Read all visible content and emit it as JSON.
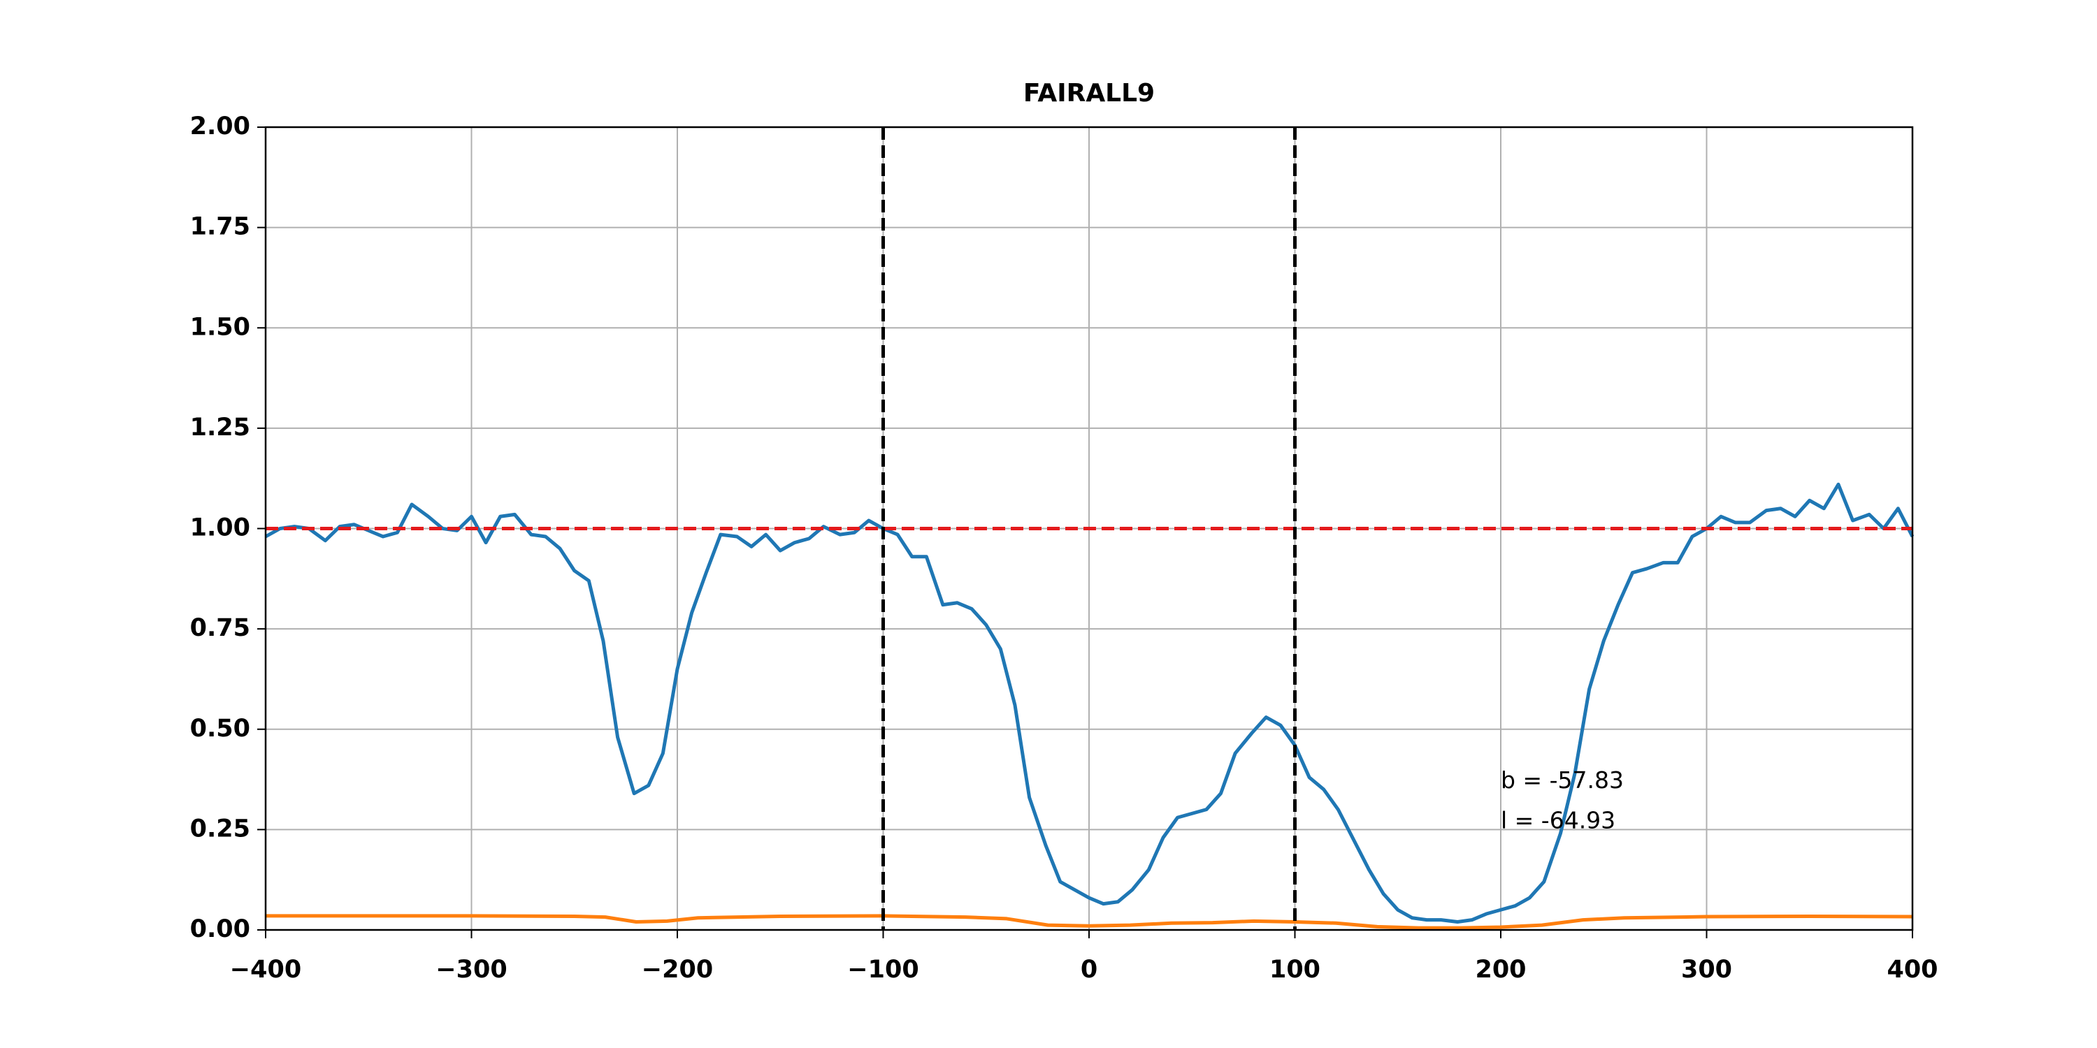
{
  "chart_data": {
    "type": "line",
    "title": "FAIRALL9",
    "xlim": [
      -400,
      400
    ],
    "ylim": [
      0,
      2
    ],
    "xticks": [
      {
        "value": -400,
        "label": "−400"
      },
      {
        "value": -300,
        "label": "−300"
      },
      {
        "value": -200,
        "label": "−200"
      },
      {
        "value": -100,
        "label": "−100"
      },
      0,
      100,
      200,
      300,
      400
    ],
    "yticks": [
      {
        "value": 0,
        "label": "0.00"
      },
      {
        "value": 0.25,
        "label": "0.25"
      },
      {
        "value": 0.5,
        "label": "0.50"
      },
      {
        "value": 0.75,
        "label": "0.75"
      },
      {
        "value": 1,
        "label": "1.00"
      },
      {
        "value": 1.25,
        "label": "1.25"
      },
      {
        "value": 1.5,
        "label": "1.50"
      },
      {
        "value": 1.75,
        "label": "1.75"
      },
      {
        "value": 2,
        "label": "2.00"
      }
    ],
    "grid": true,
    "series": [
      {
        "color": "#1f77b4",
        "x": [
          -400,
          -393,
          -386,
          -379,
          -371,
          -364,
          -357,
          -350,
          -343,
          -336,
          -329,
          -321,
          -314,
          -307,
          -300,
          -293,
          -286,
          -279,
          -271,
          -264,
          -257,
          -250,
          -243,
          -236,
          -229,
          -221,
          -214,
          -207,
          -200,
          -193,
          -186,
          -179,
          -171,
          -164,
          -157,
          -150,
          -143,
          -136,
          -129,
          -121,
          -114,
          -107,
          -100,
          -93,
          -86,
          -79,
          -71,
          -64,
          -57,
          -50,
          -43,
          -36,
          -29,
          -21,
          -14,
          -7,
          0,
          7,
          14,
          21,
          29,
          36,
          43,
          50,
          57,
          64,
          71,
          79,
          86,
          93,
          100,
          107,
          114,
          121,
          129,
          136,
          143,
          150,
          157,
          164,
          171,
          179,
          186,
          193,
          200,
          207,
          214,
          221,
          229,
          236,
          243,
          250,
          257,
          264,
          271,
          279,
          286,
          293,
          300,
          307,
          314,
          321,
          329,
          336,
          343,
          350,
          357,
          364,
          371,
          379,
          386,
          393,
          400
        ],
        "values": [
          0.98,
          1.0,
          1.005,
          1.0,
          0.97,
          1.005,
          1.01,
          0.995,
          0.98,
          0.99,
          1.06,
          1.03,
          1.0,
          0.995,
          1.03,
          0.965,
          1.03,
          1.035,
          0.985,
          0.98,
          0.95,
          0.895,
          0.87,
          0.72,
          0.48,
          0.34,
          0.36,
          0.44,
          0.65,
          0.79,
          0.89,
          0.985,
          0.98,
          0.955,
          0.985,
          0.945,
          0.965,
          0.975,
          1.005,
          0.985,
          0.99,
          1.02,
          1.0,
          0.985,
          0.93,
          0.93,
          0.81,
          0.815,
          0.8,
          0.76,
          0.7,
          0.56,
          0.33,
          0.21,
          0.12,
          0.1,
          0.08,
          0.065,
          0.07,
          0.1,
          0.15,
          0.23,
          0.28,
          0.29,
          0.3,
          0.34,
          0.44,
          0.49,
          0.53,
          0.51,
          0.46,
          0.38,
          0.35,
          0.3,
          0.22,
          0.15,
          0.09,
          0.05,
          0.03,
          0.025,
          0.025,
          0.02,
          0.025,
          0.04,
          0.05,
          0.06,
          0.08,
          0.12,
          0.24,
          0.39,
          0.6,
          0.72,
          0.81,
          0.89,
          0.9,
          0.915,
          0.915,
          0.98,
          1.0,
          1.03,
          1.015,
          1.015,
          1.045,
          1.05,
          1.03,
          1.07,
          1.05,
          1.11,
          1.02,
          1.035,
          1.0,
          1.05,
          0.98
        ]
      },
      {
        "color": "#ff7f0e",
        "x": [
          -400,
          -350,
          -300,
          -250,
          -235,
          -220,
          -205,
          -190,
          -150,
          -100,
          -60,
          -40,
          -20,
          0,
          20,
          40,
          60,
          80,
          100,
          120,
          140,
          160,
          180,
          200,
          220,
          240,
          260,
          300,
          350,
          400
        ],
        "values": [
          0.035,
          0.035,
          0.035,
          0.034,
          0.032,
          0.02,
          0.022,
          0.03,
          0.034,
          0.035,
          0.032,
          0.028,
          0.012,
          0.01,
          0.012,
          0.017,
          0.018,
          0.022,
          0.02,
          0.017,
          0.008,
          0.005,
          0.005,
          0.007,
          0.012,
          0.025,
          0.03,
          0.033,
          0.034,
          0.033
        ]
      }
    ],
    "hline": {
      "value": 1,
      "color": "#e41a1c"
    },
    "vlines": [
      -100,
      100
    ],
    "annotations": [
      {
        "text": "b = -57.83",
        "x": 200,
        "y": 0.37
      },
      {
        "text": "l = -64.93",
        "x": 200,
        "y": 0.27
      }
    ]
  }
}
